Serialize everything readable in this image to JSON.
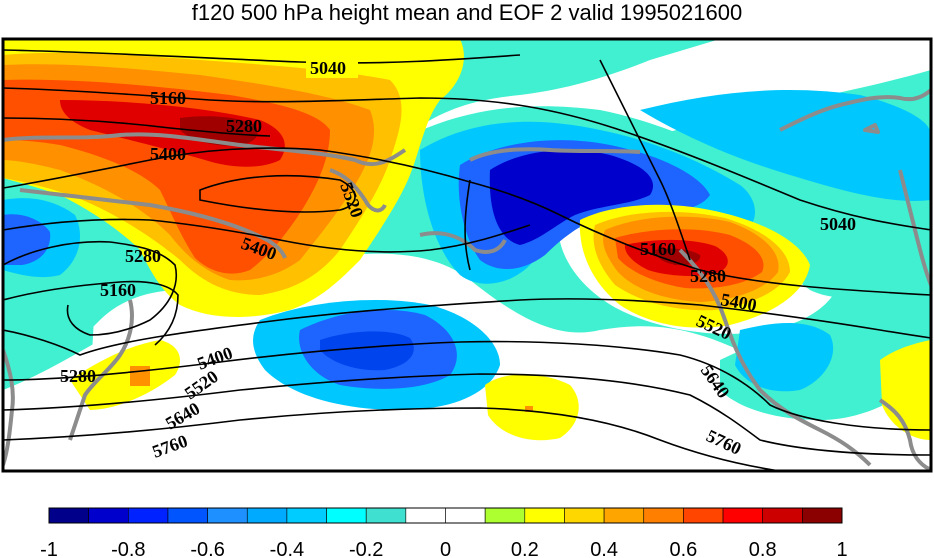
{
  "title": "f120 500 hPa height mean and EOF 2 valid 1995021600",
  "contour_labels": [
    "5040",
    "5160",
    "5280",
    "5400",
    "5520",
    "5040",
    "5280",
    "5160",
    "5400",
    "5280",
    "5400",
    "5520",
    "5640",
    "5760",
    "5160",
    "5280",
    "5400",
    "5520",
    "5640",
    "5760"
  ],
  "colorbar": {
    "colors": [
      "#00008b",
      "#0000cd",
      "#0022ff",
      "#0055ff",
      "#1e90ff",
      "#00aaff",
      "#00ccff",
      "#00ffff",
      "#40e0d0",
      "#ffffff",
      "#ffffff",
      "#adff2f",
      "#ffff00",
      "#ffd700",
      "#ffa500",
      "#ff7f00",
      "#ff4500",
      "#ff0000",
      "#cd0000",
      "#8b0000"
    ],
    "tick_labels": [
      "-1",
      "-0.8",
      "-0.6",
      "-0.4",
      "-0.2",
      "0",
      "0.2",
      "0.4",
      "0.6",
      "0.8",
      "1"
    ]
  },
  "palette": {
    "dark_blue": "#0000cd",
    "blue": "#1e64ff",
    "light_blue": "#3aa0ff",
    "cyan": "#00c8ff",
    "turquoise": "#40f0d0",
    "white": "#ffffff",
    "yellow": "#ffff00",
    "orange_light": "#ffc000",
    "orange": "#ff9000",
    "red_orange": "#ff5000",
    "red": "#e00000",
    "dark_red": "#a00000",
    "coast": "#8c8c8c"
  }
}
